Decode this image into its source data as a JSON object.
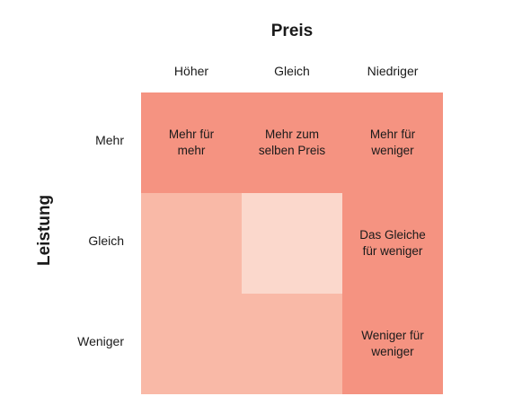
{
  "titles": {
    "top": "Preis",
    "side": "Leistung"
  },
  "columns": [
    "Höher",
    "Gleich",
    "Niedriger"
  ],
  "rows": [
    "Mehr",
    "Gleich",
    "Weniger"
  ],
  "cells": [
    [
      "Mehr für\nmehr",
      "Mehr zum\nselben Preis",
      "Mehr für\nweniger"
    ],
    [
      "",
      "",
      "Das Gleiche\nfür weniger"
    ],
    [
      "",
      "",
      "Weniger für\nweniger"
    ]
  ],
  "colors": {
    "dark": "#f59381",
    "light": "#f9b9a7",
    "pale": "#fbd8cc"
  }
}
